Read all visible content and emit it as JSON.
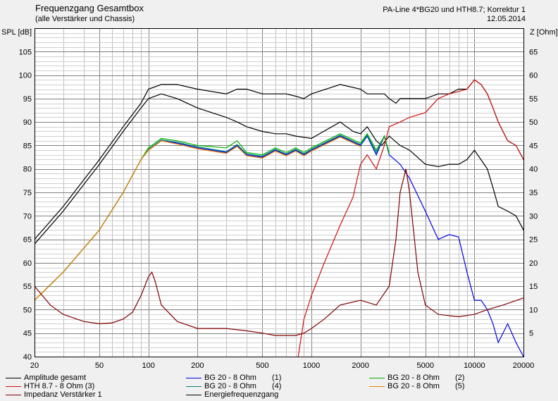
{
  "header": {
    "title": "Frequenzgang Gesamtbox",
    "subtitle": "(alle Verstärker und Chassis)",
    "project": "PA-Line 4*BG20 und HTH8.7; Korrektur 1",
    "date": "12.05.2014"
  },
  "chart_data": {
    "type": "line",
    "x_scale": "log",
    "xlim": [
      20,
      20000
    ],
    "ylim_left": [
      40,
      110
    ],
    "ylim_right": [
      0,
      70
    ],
    "ylabel_left": "SPL [dB]",
    "ylabel_right": "Z [Ohm]",
    "x_ticks": [
      20,
      50,
      100,
      200,
      500,
      1000,
      2000,
      5000,
      10000,
      20000
    ],
    "x_tick_labels": [
      "20",
      "50",
      "100",
      "200",
      "500",
      "1000",
      "2000",
      "5000",
      "10000",
      "20000"
    ],
    "y_ticks_left": [
      40,
      45,
      50,
      55,
      60,
      65,
      70,
      75,
      80,
      85,
      90,
      95,
      100,
      105
    ],
    "y_ticks_right": [
      5,
      10,
      15,
      20,
      25,
      30,
      35,
      40,
      45,
      50,
      55,
      60,
      65
    ],
    "grid": true,
    "colors": {
      "background": "#ffffff",
      "grid": "#a0a0a0",
      "black": "#000000",
      "red": "#d01010",
      "darkred": "#800000",
      "blue": "#0000e0",
      "green": "#00b000",
      "orange": "#f08000"
    },
    "legend": [
      {
        "label": "Amplitude gesamt",
        "color": "#000000"
      },
      {
        "label": "HTH 8.7 - 8 Ohm (3)",
        "color": "#d01010"
      },
      {
        "label": "Impedanz Verstärker 1",
        "color": "#800000"
      },
      {
        "label": "BG 20 - 8 Ohm",
        "suffix": "(1)",
        "color": "#0000e0"
      },
      {
        "label": "BG 20 - 8 Ohm",
        "suffix": "(4)",
        "color": "#008080"
      },
      {
        "label": "Energiefrequenzgang",
        "color": "#000000"
      },
      {
        "label": "BG 20 - 8 Ohm",
        "suffix": "(2)",
        "color": "#00b000"
      },
      {
        "label": "BG 20 - 8 Ohm",
        "suffix": "(5)",
        "color": "#f08000"
      }
    ],
    "series": [
      {
        "name": "Amplitude gesamt",
        "color": "#000000",
        "style": "solid",
        "axis": "left",
        "x": [
          20,
          30,
          50,
          70,
          90,
          100,
          120,
          150,
          200,
          300,
          350,
          400,
          500,
          600,
          700,
          800,
          1000,
          1500,
          1800,
          2000,
          2200,
          2500,
          2700,
          3000,
          3500,
          4000,
          5000,
          6000,
          7000,
          8000,
          9000,
          10000,
          12000,
          13000,
          14000,
          16000,
          18000,
          20000
        ],
        "y": [
          64,
          71,
          81,
          88,
          93,
          95,
          96,
          95,
          93,
          91,
          90,
          89,
          88,
          87.5,
          87.5,
          87,
          86.5,
          90,
          88,
          87.5,
          89,
          86,
          85,
          87,
          85,
          84,
          81,
          80.5,
          81,
          81,
          82,
          84,
          80,
          76,
          72,
          71,
          70,
          67
        ]
      },
      {
        "name": "Energiefrequenzgang",
        "color": "#000000",
        "style": "solid",
        "axis": "left",
        "x": [
          20,
          30,
          50,
          70,
          90,
          100,
          120,
          150,
          200,
          300,
          350,
          400,
          500,
          600,
          700,
          800,
          900,
          1000,
          1500,
          2000,
          2200,
          2500,
          2800,
          3000,
          3300,
          3500,
          4000,
          5000,
          6000,
          7000,
          8000,
          9000,
          10000,
          11000,
          12000,
          13000,
          14000,
          16000,
          18000,
          20000
        ],
        "y": [
          65,
          72,
          82,
          89,
          94,
          97,
          98,
          98,
          97,
          96,
          97,
          97,
          96,
          96,
          96,
          95.5,
          95,
          96,
          98,
          97,
          96,
          96,
          96,
          95,
          94,
          95,
          95,
          95,
          96,
          96,
          97,
          97,
          99,
          98,
          96,
          93,
          90,
          86,
          85,
          82
        ]
      },
      {
        "name": "BG 20 - 8 Ohm (1)",
        "color": "#0000e0",
        "style": "solid",
        "axis": "left",
        "x": [
          20,
          30,
          50,
          70,
          90,
          100,
          120,
          150,
          200,
          300,
          350,
          400,
          500,
          600,
          700,
          800,
          900,
          1000,
          1500,
          2000,
          2200,
          2500,
          2800,
          3000,
          3500,
          4000,
          5000,
          6000,
          7000,
          8000,
          9000,
          10000,
          11000,
          12000,
          13000,
          14000,
          16000,
          18000,
          20000
        ],
        "y": [
          52,
          58,
          67,
          75,
          82,
          84,
          86,
          85.5,
          84.5,
          83.5,
          85,
          83,
          82.5,
          84,
          83,
          84,
          83,
          84,
          87,
          85,
          87,
          83,
          87,
          83,
          81,
          78,
          71,
          65,
          66,
          65.5,
          58,
          52,
          52,
          50,
          47,
          43,
          47,
          43,
          40
        ]
      },
      {
        "name": "BG 20 - 8 Ohm (4)",
        "color": "#008080",
        "style": "solid",
        "axis": "left",
        "x": [
          20,
          30,
          50,
          70,
          90,
          100,
          120,
          150,
          200,
          300,
          350,
          400,
          500,
          600,
          700,
          800,
          900,
          1000,
          1500,
          2000,
          2200,
          2500,
          2800,
          3000
        ],
        "y": [
          52,
          58,
          67,
          75,
          82,
          84.2,
          86.2,
          85.7,
          84.7,
          83.7,
          85.2,
          83.2,
          82.7,
          84.2,
          83.2,
          84.2,
          83.2,
          84.2,
          87.2,
          85.2,
          87.2,
          83.5,
          87,
          83
        ]
      },
      {
        "name": "BG 20 - 8 Ohm (2)",
        "color": "#00b000",
        "style": "solid",
        "axis": "left",
        "x": [
          20,
          30,
          50,
          70,
          90,
          100,
          120,
          150,
          200,
          300,
          350,
          400,
          500,
          600,
          700,
          800,
          900,
          1000,
          1500,
          2000,
          2200,
          2500,
          2800,
          3000
        ],
        "y": [
          52,
          58,
          67,
          75,
          82,
          84.5,
          86.5,
          86,
          85,
          84.5,
          86,
          83.5,
          83,
          84.5,
          83.5,
          84.5,
          83.5,
          84.5,
          87.5,
          85.5,
          87.5,
          84,
          87,
          83.5
        ]
      },
      {
        "name": "BG 20 - 8 Ohm (5)",
        "color": "#f08000",
        "style": "solid",
        "axis": "left",
        "x": [
          20,
          30,
          50,
          70,
          90,
          100,
          120,
          150,
          200,
          300,
          350,
          400,
          500,
          600,
          700,
          800,
          900,
          1000,
          1500,
          2000
        ],
        "y": [
          52,
          58,
          67,
          75,
          82,
          84,
          86,
          85.3,
          84.3,
          83.3,
          84.8,
          82.8,
          82.3,
          83.8,
          82.8,
          83.8,
          82.8,
          83.8,
          86.8,
          84.8
        ]
      },
      {
        "name": "HTH 8.7 - 8 Ohm (3)",
        "color": "#d01010",
        "style": "solid",
        "axis": "left",
        "x": [
          830,
          900,
          1000,
          1200,
          1500,
          1800,
          2000,
          2200,
          2500,
          2800,
          3000,
          3500,
          4000,
          5000,
          6000,
          7000,
          8000,
          9000,
          10000,
          11000,
          12000,
          13000,
          14000,
          16000,
          18000,
          20000
        ],
        "y": [
          40,
          48,
          53,
          60,
          68,
          74,
          81,
          83,
          80,
          85,
          89,
          90,
          91,
          92,
          95,
          96,
          96.5,
          97,
          99,
          98,
          96,
          93,
          90,
          86,
          85,
          82
        ]
      },
      {
        "name": "Impedanz Verstärker 1",
        "color": "#800000",
        "style": "solid",
        "axis": "right",
        "x": [
          20,
          25,
          30,
          40,
          50,
          60,
          70,
          80,
          90,
          100,
          105,
          110,
          120,
          150,
          200,
          300,
          400,
          500,
          600,
          700,
          800,
          900,
          1000,
          1200,
          1500,
          2000,
          2500,
          3000,
          3300,
          3500,
          3800,
          4000,
          4500,
          5000,
          6000,
          8000,
          10000,
          12000,
          15000,
          20000
        ],
        "y": [
          15,
          11,
          9,
          7.5,
          7,
          7.2,
          8,
          9.5,
          13,
          17,
          18,
          16,
          11,
          7.5,
          6,
          6,
          5.5,
          5,
          4.5,
          4.5,
          4.5,
          5,
          6,
          8,
          11,
          12,
          11,
          15,
          25,
          35,
          40,
          35,
          18,
          11,
          9,
          8.5,
          9,
          10,
          11,
          12.5
        ]
      }
    ]
  }
}
